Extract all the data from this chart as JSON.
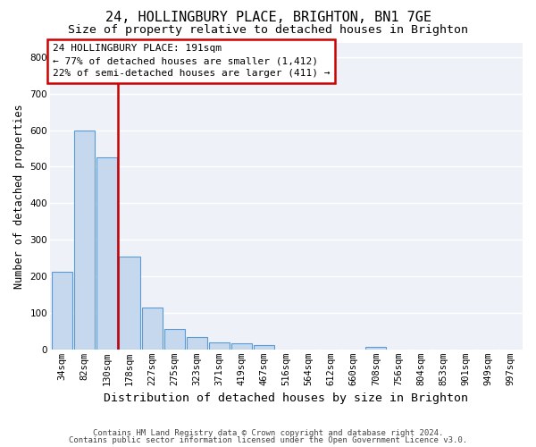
{
  "title": "24, HOLLINGBURY PLACE, BRIGHTON, BN1 7GE",
  "subtitle": "Size of property relative to detached houses in Brighton",
  "xlabel": "Distribution of detached houses by size in Brighton",
  "ylabel": "Number of detached properties",
  "footer_line1": "Contains HM Land Registry data © Crown copyright and database right 2024.",
  "footer_line2": "Contains public sector information licensed under the Open Government Licence v3.0.",
  "annotation_line1": "24 HOLLINGBURY PLACE: 191sqm",
  "annotation_line2": "← 77% of detached houses are smaller (1,412)",
  "annotation_line3": "22% of semi-detached houses are larger (411) →",
  "ylim": [
    0,
    840
  ],
  "yticks": [
    0,
    100,
    200,
    300,
    400,
    500,
    600,
    700,
    800
  ],
  "bar_labels": [
    "34sqm",
    "82sqm",
    "130sqm",
    "178sqm",
    "227sqm",
    "275sqm",
    "323sqm",
    "371sqm",
    "419sqm",
    "467sqm",
    "516sqm",
    "564sqm",
    "612sqm",
    "660sqm",
    "708sqm",
    "756sqm",
    "804sqm",
    "853sqm",
    "901sqm",
    "949sqm",
    "997sqm"
  ],
  "bar_values": [
    213,
    600,
    525,
    255,
    115,
    57,
    33,
    20,
    18,
    13,
    0,
    0,
    0,
    0,
    8,
    0,
    0,
    0,
    0,
    0,
    0
  ],
  "bar_color": "#c5d8ed",
  "bar_edge_color": "#5b9bd5",
  "vline_color": "#cc0000",
  "vline_x": 2.5,
  "annotation_box_color": "#cc0000",
  "plot_bg_color": "#eef2f8",
  "fig_bg_color": "#ffffff",
  "grid_color": "#ffffff",
  "title_fontsize": 11,
  "subtitle_fontsize": 9.5,
  "xlabel_fontsize": 9.5,
  "ylabel_fontsize": 8.5,
  "tick_fontsize": 7.5,
  "annotation_fontsize": 8,
  "footer_fontsize": 6.5
}
